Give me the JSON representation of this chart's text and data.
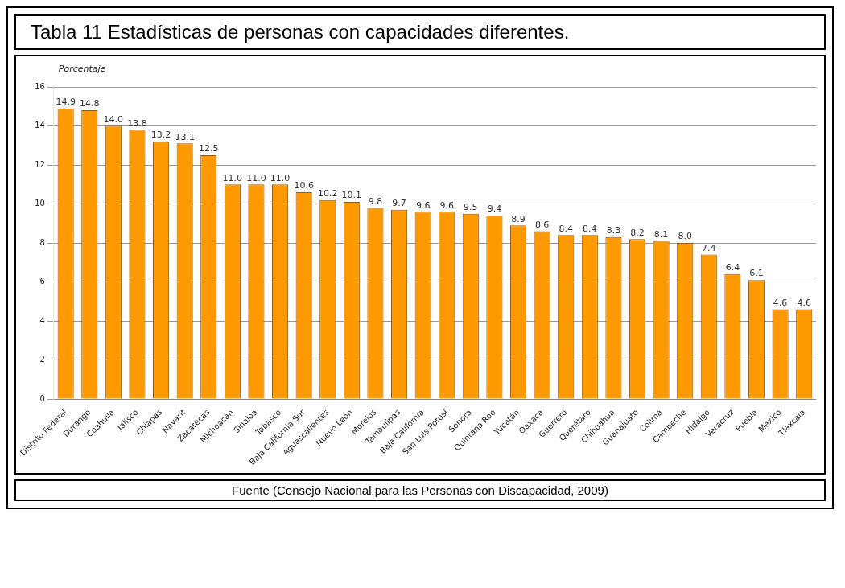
{
  "chart_data": {
    "type": "bar",
    "title": "Tabla 11 Estadísticas de personas con capacidades diferentes.",
    "ylabel": "Porcentaje",
    "annotations": [
      "Fuente (Consejo Nacional para las Personas con Discapacidad, 2009)"
    ],
    "categories": [
      "Distrito Federal",
      "Durango",
      "Coahuila",
      "Jalisco",
      "Chiapas",
      "Nayarit",
      "Zacatecas",
      "Michoacán",
      "Sinaloa",
      "Tabasco",
      "Baja California Sur",
      "Aguascalientes",
      "Nuevo León",
      "Morelos",
      "Tamaulipas",
      "Baja California",
      "San Luis Potosí",
      "Sonora",
      "Quintana Roo",
      "Yucatán",
      "Oaxaca",
      "Guerrero",
      "Querétaro",
      "Chihuahua",
      "Guanajuato",
      "Colima",
      "Campeche",
      "Hidalgo",
      "Veracruz",
      "Puebla",
      "México",
      "Tlaxcala"
    ],
    "values": [
      14.9,
      14.8,
      14.0,
      13.8,
      13.2,
      13.1,
      12.5,
      11.0,
      11.0,
      11.0,
      10.6,
      10.2,
      10.1,
      9.8,
      9.7,
      9.6,
      9.6,
      9.5,
      9.4,
      8.9,
      8.6,
      8.4,
      8.4,
      8.3,
      8.2,
      8.1,
      8.0,
      7.4,
      6.4,
      6.1,
      4.6,
      4.6
    ],
    "value_labels": [
      "14.9",
      "14.8",
      "14.0",
      "13.8",
      "13.2",
      "13.1",
      "12.5",
      "11.0",
      "11.0",
      "11.0",
      "10.6",
      "10.2",
      "10.1",
      "9.8",
      "9.7",
      "9.6",
      "9.6",
      "9.5",
      "9.4",
      "8.9",
      "8.6",
      "8.4",
      "8.4",
      "8.3",
      "8.2",
      "8.1",
      "8.0",
      "7.4",
      "6.4",
      "6.1",
      "4.6",
      "4.6"
    ],
    "color": "#ff9900",
    "ylim": [
      0,
      16
    ],
    "yticks": [
      0,
      2,
      4,
      6,
      8,
      10,
      12,
      14,
      16
    ],
    "grid": "y",
    "legend": false
  }
}
